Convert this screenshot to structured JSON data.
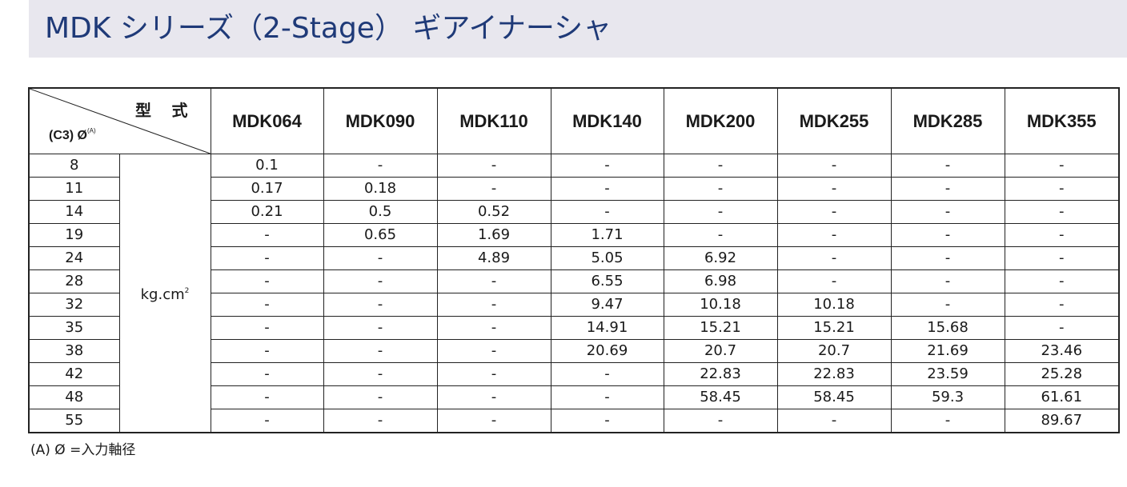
{
  "title": "MDK シリーズ（2-Stage） ギアイナーシャ",
  "corner": {
    "model_label": "型 式",
    "shaft_label": "(C3) Ø",
    "shaft_note_ref": "(A)"
  },
  "models": [
    "MDK064",
    "MDK090",
    "MDK110",
    "MDK140",
    "MDK200",
    "MDK255",
    "MDK285",
    "MDK355"
  ],
  "unit": {
    "base": "kg.cm",
    "exp": "2"
  },
  "rows": [
    {
      "d": "8",
      "v": [
        "0.1",
        "-",
        "-",
        "-",
        "-",
        "-",
        "-",
        "-"
      ]
    },
    {
      "d": "11",
      "v": [
        "0.17",
        "0.18",
        "-",
        "-",
        "-",
        "-",
        "-",
        "-"
      ]
    },
    {
      "d": "14",
      "v": [
        "0.21",
        "0.5",
        "0.52",
        "-",
        "-",
        "-",
        "-",
        "-"
      ]
    },
    {
      "d": "19",
      "v": [
        "-",
        "0.65",
        "1.69",
        "1.71",
        "-",
        "-",
        "-",
        "-"
      ]
    },
    {
      "d": "24",
      "v": [
        "-",
        "-",
        "4.89",
        "5.05",
        "6.92",
        "-",
        "-",
        "-"
      ]
    },
    {
      "d": "28",
      "v": [
        "-",
        "-",
        "-",
        "6.55",
        "6.98",
        "-",
        "-",
        "-"
      ]
    },
    {
      "d": "32",
      "v": [
        "-",
        "-",
        "-",
        "9.47",
        "10.18",
        "10.18",
        "-",
        "-"
      ]
    },
    {
      "d": "35",
      "v": [
        "-",
        "-",
        "-",
        "14.91",
        "15.21",
        "15.21",
        "15.68",
        "-"
      ]
    },
    {
      "d": "38",
      "v": [
        "-",
        "-",
        "-",
        "20.69",
        "20.7",
        "20.7",
        "21.69",
        "23.46"
      ]
    },
    {
      "d": "42",
      "v": [
        "-",
        "-",
        "-",
        "-",
        "22.83",
        "22.83",
        "23.59",
        "25.28"
      ]
    },
    {
      "d": "48",
      "v": [
        "-",
        "-",
        "-",
        "-",
        "58.45",
        "58.45",
        "59.3",
        "61.61"
      ]
    },
    {
      "d": "55",
      "v": [
        "-",
        "-",
        "-",
        "-",
        "-",
        "-",
        "-",
        "89.67"
      ]
    }
  ],
  "footnote": "(A)  Ø =入力軸径"
}
